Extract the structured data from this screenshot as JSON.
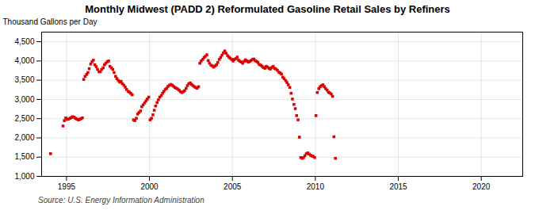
{
  "chart_data": {
    "type": "scatter",
    "title": "Monthly Midwest (PADD 2) Reformulated Gasoline Retail Sales by Refiners",
    "ylabel": "Thousand Gallons per Day",
    "caption": "Source: U.S. Energy Information Administration",
    "color": "#dd0000",
    "marker": "square",
    "grid": true,
    "xlim": [
      1993.5,
      2022.5
    ],
    "ylim": [
      1000,
      4750
    ],
    "xticks": [
      1995,
      2000,
      2005,
      2010,
      2015,
      2020
    ],
    "yticks": [
      {
        "value": 1000,
        "label": "1,000"
      },
      {
        "value": 1500,
        "label": "1,500"
      },
      {
        "value": 2000,
        "label": "2,000"
      },
      {
        "value": 2500,
        "label": "2,500"
      },
      {
        "value": 3000,
        "label": "3,000"
      },
      {
        "value": 3500,
        "label": "3,500"
      },
      {
        "value": 4000,
        "label": "4,000"
      },
      {
        "value": 4500,
        "label": "4,500"
      }
    ],
    "x": [
      1994.04,
      1994.79,
      1994.87,
      1994.96,
      1995.04,
      1995.12,
      1995.21,
      1995.29,
      1995.37,
      1995.46,
      1995.54,
      1995.62,
      1995.71,
      1995.79,
      1995.87,
      1995.96,
      1996.04,
      1996.12,
      1996.21,
      1996.29,
      1996.37,
      1996.46,
      1996.54,
      1996.62,
      1996.71,
      1996.79,
      1996.87,
      1996.96,
      1997.04,
      1997.12,
      1997.21,
      1997.29,
      1997.37,
      1997.46,
      1997.54,
      1997.62,
      1997.71,
      1997.79,
      1997.87,
      1997.96,
      1998.04,
      1998.12,
      1998.21,
      1998.29,
      1998.37,
      1998.46,
      1998.54,
      1998.62,
      1998.71,
      1998.79,
      1998.87,
      1998.96,
      1999.04,
      1999.12,
      1999.21,
      1999.29,
      1999.37,
      1999.46,
      1999.54,
      1999.62,
      1999.71,
      1999.79,
      1999.87,
      1999.96,
      2000.04,
      2000.12,
      2000.21,
      2000.29,
      2000.37,
      2000.46,
      2000.54,
      2000.62,
      2000.71,
      2000.79,
      2000.87,
      2000.96,
      2001.04,
      2001.12,
      2001.21,
      2001.29,
      2001.37,
      2001.46,
      2001.54,
      2001.62,
      2001.71,
      2001.79,
      2001.87,
      2001.96,
      2002.04,
      2002.12,
      2002.21,
      2002.29,
      2002.37,
      2002.46,
      2002.54,
      2002.62,
      2002.71,
      2002.79,
      2002.87,
      2002.96,
      2003.04,
      2003.12,
      2003.21,
      2003.29,
      2003.37,
      2003.46,
      2003.54,
      2003.62,
      2003.71,
      2003.79,
      2003.87,
      2003.96,
      2004.04,
      2004.12,
      2004.21,
      2004.29,
      2004.37,
      2004.46,
      2004.54,
      2004.62,
      2004.71,
      2004.79,
      2004.87,
      2004.96,
      2005.04,
      2005.12,
      2005.21,
      2005.29,
      2005.37,
      2005.46,
      2005.54,
      2005.62,
      2005.71,
      2005.79,
      2005.87,
      2005.96,
      2006.04,
      2006.12,
      2006.21,
      2006.29,
      2006.37,
      2006.46,
      2006.54,
      2006.62,
      2006.71,
      2006.79,
      2006.87,
      2006.96,
      2007.04,
      2007.12,
      2007.21,
      2007.29,
      2007.37,
      2007.46,
      2007.54,
      2007.62,
      2007.71,
      2007.79,
      2007.87,
      2007.96,
      2008.04,
      2008.12,
      2008.21,
      2008.29,
      2008.37,
      2008.46,
      2008.54,
      2008.62,
      2008.71,
      2008.79,
      2008.87,
      2008.96,
      2009.04,
      2009.12,
      2009.21,
      2009.29,
      2009.37,
      2009.46,
      2009.54,
      2009.62,
      2009.71,
      2009.79,
      2009.87,
      2009.96,
      2010.04,
      2010.12,
      2010.21,
      2010.29,
      2010.37,
      2010.46,
      2010.54,
      2010.62,
      2010.71,
      2010.79,
      2010.87,
      2010.96,
      2011.04,
      2011.12,
      2011.21
    ],
    "values": [
      1590,
      2310,
      2450,
      2520,
      2480,
      2490,
      2510,
      2530,
      2550,
      2540,
      2510,
      2490,
      2470,
      2480,
      2500,
      2520,
      3520,
      3600,
      3650,
      3700,
      3800,
      3920,
      3980,
      4020,
      3900,
      3850,
      3780,
      3720,
      3720,
      3780,
      3820,
      3900,
      3940,
      3980,
      4000,
      3860,
      3820,
      3780,
      3700,
      3600,
      3540,
      3490,
      3450,
      3470,
      3410,
      3370,
      3320,
      3260,
      3210,
      3190,
      3160,
      3120,
      2470,
      2450,
      2510,
      2620,
      2660,
      2700,
      2810,
      2860,
      2910,
      2960,
      3010,
      3060,
      2470,
      2510,
      2600,
      2720,
      2830,
      2920,
      2990,
      3060,
      3100,
      3160,
      3210,
      3260,
      3290,
      3340,
      3370,
      3390,
      3370,
      3340,
      3310,
      3290,
      3270,
      3240,
      3200,
      3180,
      3200,
      3230,
      3290,
      3360,
      3410,
      3430,
      3390,
      3360,
      3330,
      3310,
      3290,
      3330,
      3940,
      4000,
      4040,
      4090,
      4120,
      4160,
      4010,
      3940,
      3890,
      3870,
      3840,
      3870,
      3900,
      3960,
      4040,
      4090,
      4150,
      4210,
      4260,
      4200,
      4140,
      4100,
      4070,
      4040,
      4000,
      4040,
      4060,
      4100,
      4020,
      3990,
      3970,
      3940,
      3990,
      4030,
      4000,
      3970,
      3990,
      4010,
      4040,
      4050,
      4010,
      3990,
      3960,
      3910,
      3890,
      3860,
      3830,
      3810,
      3860,
      3840,
      3810,
      3790,
      3830,
      3860,
      3810,
      3790,
      3760,
      3710,
      3690,
      3660,
      3580,
      3540,
      3490,
      3440,
      3380,
      3310,
      3160,
      3010,
      2870,
      2760,
      2580,
      2470,
      2020,
      1490,
      1470,
      1490,
      1540,
      1590,
      1610,
      1580,
      1550,
      1530,
      1520,
      1490,
      2580,
      3180,
      3280,
      3330,
      3360,
      3380,
      3330,
      3280,
      3240,
      3190,
      3170,
      3140,
      3080,
      2030,
      1470
    ]
  }
}
